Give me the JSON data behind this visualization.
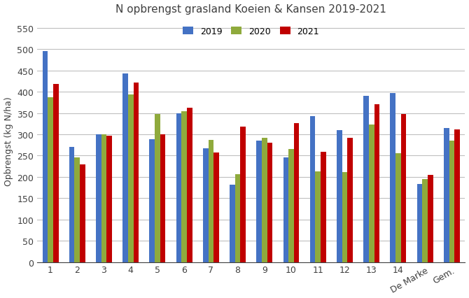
{
  "title": "N opbrengst grasland Koeien & Kansen 2019-2021",
  "ylabel": "Opbrengst (kg N/ha)",
  "categories": [
    "1",
    "2",
    "3",
    "4",
    "5",
    "6",
    "7",
    "8",
    "9",
    "10",
    "11",
    "12",
    "13",
    "14",
    "De Marke",
    "Gem."
  ],
  "series": {
    "2019": [
      495,
      270,
      300,
      443,
      288,
      350,
      267,
      182,
      285,
      245,
      342,
      310,
      390,
      397,
      183,
      315
    ],
    "2020": [
      387,
      245,
      300,
      393,
      347,
      355,
      287,
      207,
      292,
      265,
      213,
      211,
      323,
      255,
      195,
      285
    ],
    "2021": [
      418,
      230,
      297,
      422,
      300,
      363,
      257,
      318,
      280,
      327,
      259,
      292,
      370,
      347,
      205,
      312
    ]
  },
  "colors": {
    "2019": "#4472C4",
    "2020": "#8faa3c",
    "2021": "#C00000"
  },
  "ylim": [
    0,
    570
  ],
  "yticks": [
    0,
    50,
    100,
    150,
    200,
    250,
    300,
    350,
    400,
    450,
    500,
    550
  ],
  "bar_width": 0.2,
  "figsize": [
    6.7,
    4.27
  ],
  "dpi": 100,
  "background_color": "#ffffff",
  "grid_color": "#bfbfbf"
}
